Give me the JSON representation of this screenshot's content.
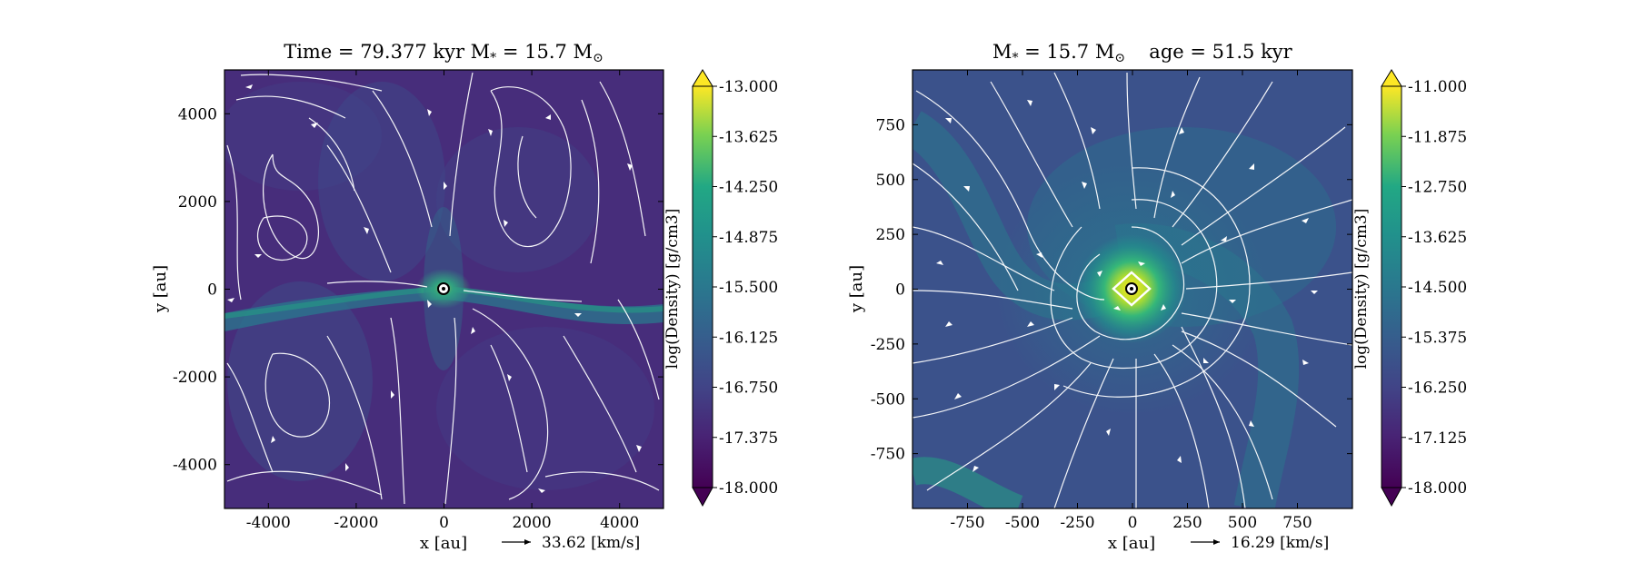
{
  "panels": [
    {
      "title": "Time = 79.377 kyr    M$_*$ = 15.7 M$_\\odot$",
      "title_text": "Time = 79.377 kyr    M",
      "title_star": "*",
      "title_eq": " = 15.7 M",
      "title_sun": "⊙",
      "xlabel": "x [au]",
      "ylabel": "y [au]",
      "xlim": [
        -5000,
        5000
      ],
      "ylim": [
        -5000,
        5000
      ],
      "xticks": [
        "-4000",
        "-2000",
        "0",
        "2000",
        "4000"
      ],
      "xtick_values": [
        -4000,
        -2000,
        0,
        2000,
        4000
      ],
      "yticks": [
        "4000",
        "2000",
        "0",
        "-2000",
        "-4000"
      ],
      "ytick_values": [
        4000,
        2000,
        0,
        -2000,
        -4000
      ],
      "velocity_key": "33.62 [km/s]",
      "colorbar": {
        "label": "log(Density) [g/cm3]",
        "ticks": [
          "-13.000",
          "-13.625",
          "-14.250",
          "-14.875",
          "-15.500",
          "-16.125",
          "-16.750",
          "-17.375",
          "-18.000"
        ],
        "range": [
          -18.0,
          -13.0
        ]
      }
    },
    {
      "title_text": "M",
      "title_star": "*",
      "title_eq": " = 15.7 M",
      "title_sun": "⊙",
      "title_age": "age = 51.5 kyr",
      "xlabel": "x [au]",
      "ylabel": "y [au]",
      "xlim": [
        -1000,
        1000
      ],
      "ylim": [
        -1000,
        1000
      ],
      "xticks": [
        "-750",
        "-500",
        "-250",
        "0",
        "250",
        "500",
        "750"
      ],
      "xtick_values": [
        -750,
        -500,
        -250,
        0,
        250,
        500,
        750
      ],
      "yticks": [
        "750",
        "500",
        "250",
        "0",
        "-250",
        "-500",
        "-750"
      ],
      "ytick_values": [
        750,
        500,
        250,
        0,
        -250,
        -500,
        -750
      ],
      "velocity_key": "16.29 [km/s]",
      "colorbar": {
        "label": "log(Density) [g/cm3]",
        "ticks": [
          "-11.000",
          "-11.875",
          "-12.750",
          "-13.625",
          "-14.500",
          "-15.375",
          "-16.250",
          "-17.125",
          "-18.000"
        ],
        "range": [
          -18.0,
          -11.0
        ]
      }
    }
  ],
  "chart_data": [
    {
      "type": "heatmap",
      "title": "Time = 79.377 kyr    M* = 15.7 M⊙",
      "xlabel": "x [au]",
      "ylabel": "y [au]",
      "xlim": [
        -5000,
        5000
      ],
      "ylim": [
        -5000,
        5000
      ],
      "colorbar_label": "log(Density) [g/cm3]",
      "colorbar_range": [
        -18.0,
        -13.0
      ],
      "colormap": "viridis",
      "overlays": [
        "velocity streamlines",
        "velocity arrows"
      ],
      "velocity_key": "33.62 [km/s]",
      "star_position": [
        0,
        0
      ]
    },
    {
      "type": "heatmap",
      "title": "M* = 15.7 M⊙    age = 51.5 kyr",
      "xlabel": "x [au]",
      "ylabel": "y [au]",
      "xlim": [
        -1000,
        1000
      ],
      "ylim": [
        -1000,
        1000
      ],
      "colorbar_label": "log(Density) [g/cm3]",
      "colorbar_range": [
        -18.0,
        -11.0
      ],
      "colormap": "viridis",
      "overlays": [
        "velocity streamlines",
        "velocity arrows"
      ],
      "velocity_key": "16.29 [km/s]",
      "star_position": [
        0,
        0
      ]
    }
  ],
  "colors": {
    "viridis_low": "#440154",
    "viridis_mid": "#21918c",
    "viridis_high": "#fde725",
    "background": "#46307a",
    "streamline": "#ffffff"
  }
}
